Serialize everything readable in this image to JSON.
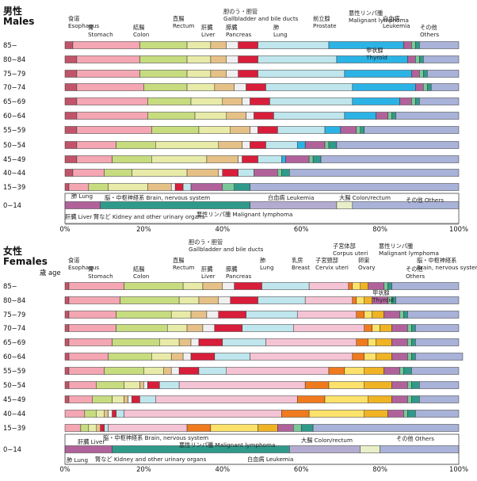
{
  "colors": {
    "esophagus": "#c1546a",
    "stomach": "#f4a6b2",
    "colon": "#c7dc7f",
    "rectum": "#e8eba8",
    "liver": "#e6c187",
    "gallbladder": "#f0f0f0",
    "pancreas": "#d81e3a",
    "lung": "#bfe6ec",
    "prostate": "#2bb3e6",
    "breast": "#f5c4d4",
    "corpus_uteri": "#f07a1e",
    "cervix_uteri": "#fce26a",
    "ovary": "#f0b323",
    "lymphoma": "#b1629b",
    "thyroid": "#7bc99a",
    "leukemia": "#2f9a8a",
    "others": "#a9b2d8",
    "brain": "#b3acd0",
    "kidney": "#e8efc7"
  },
  "chart_data": [
    {
      "type": "bar",
      "orientation": "horizontal",
      "stacked": true,
      "title": "男性 Males",
      "xlim": [
        0,
        100
      ],
      "x_ticks": [
        "0%",
        "20%",
        "40%",
        "60%",
        "80%",
        "100%"
      ],
      "categories": [
        "85−",
        "80−84",
        "75−79",
        "70−74",
        "65−69",
        "60−64",
        "55−59",
        "50−54",
        "45−49",
        "40−44",
        "15−39",
        "0−14"
      ],
      "series": [
        {
          "name": "食道 Esophagus",
          "key": "esophagus",
          "values": [
            2,
            3,
            3,
            3,
            3,
            3,
            3,
            3,
            3,
            2,
            1,
            0
          ]
        },
        {
          "name": "胃 Stomach",
          "key": "stomach",
          "values": [
            17,
            16,
            16,
            17,
            18,
            18,
            19,
            10,
            9,
            8,
            5,
            0
          ]
        },
        {
          "name": "結腸 Colon",
          "key": "colon",
          "values": [
            12,
            12,
            12,
            11,
            11,
            12,
            12,
            10,
            10,
            7,
            5,
            0
          ]
        },
        {
          "name": "直腸 Rectum",
          "key": "rectum",
          "values": [
            6,
            6,
            6,
            7,
            8,
            8,
            8,
            16,
            14,
            14,
            10,
            0
          ]
        },
        {
          "name": "肝臓 Liver",
          "key": "liver",
          "values": [
            4,
            4,
            4,
            5,
            5,
            5,
            5,
            6,
            8,
            8,
            6,
            0
          ]
        },
        {
          "name": "胆のう・胆管 Gallbladder and bile ducts",
          "key": "gallbladder",
          "values": [
            3,
            3,
            3,
            3,
            2,
            2,
            2,
            2,
            1,
            1,
            1,
            0
          ]
        },
        {
          "name": "膵臓 Pancreas",
          "key": "pancreas",
          "values": [
            5,
            5,
            5,
            5,
            5,
            5,
            5,
            4,
            4,
            4,
            2,
            0
          ]
        },
        {
          "name": "肺 Lung",
          "key": "lung",
          "values": [
            18,
            20,
            22,
            22,
            21,
            18,
            12,
            8,
            6,
            4,
            2,
            0
          ]
        },
        {
          "name": "前立腺 Prostate",
          "key": "prostate",
          "values": [
            19,
            18,
            17,
            16,
            12,
            8,
            4,
            2,
            1,
            0,
            0,
            0
          ]
        },
        {
          "name": "悪性リンパ腫 Malignant lymphoma",
          "key": "lymphoma",
          "values": [
            2,
            2,
            2,
            2,
            3,
            3,
            4,
            5,
            6,
            6,
            8,
            9
          ]
        },
        {
          "name": "甲状腺 Thyroid",
          "key": "thyroid",
          "values": [
            1,
            1,
            1,
            1,
            1,
            1,
            1,
            1,
            1,
            1,
            3,
            0
          ]
        },
        {
          "name": "白血病 Leukemia",
          "key": "leukemia",
          "values": [
            1,
            1,
            1,
            1,
            1,
            1,
            1,
            2,
            2,
            2,
            4,
            38
          ]
        },
        {
          "name": "脳・中枢神経系 Brain, nervous system",
          "key": "brain",
          "values": [
            0,
            0,
            0,
            0,
            0,
            0,
            0,
            0,
            0,
            0,
            0,
            22
          ]
        },
        {
          "name": "腎など Kidney and other urinary organs",
          "key": "kidney",
          "values": [
            0,
            0,
            0,
            0,
            0,
            0,
            0,
            0,
            0,
            0,
            0,
            4
          ]
        },
        {
          "name": "その他 Others",
          "key": "others",
          "values": [
            10,
            9,
            8,
            7,
            10,
            16,
            24,
            31,
            35,
            43,
            53,
            27
          ]
        }
      ],
      "child_row_labels": [
        "肺 Lung",
        "脳・中枢神経系 Brain, nervous system",
        "白血病 Leukemia",
        "大腸 Colon/rectum",
        "その他 Others",
        "肝臓 Liver",
        "腎など Kidney and other urinary organs",
        "悪性リンパ腫 Malignant lymphoma"
      ]
    },
    {
      "type": "bar",
      "orientation": "horizontal",
      "stacked": true,
      "title": "女性 Females",
      "age_label": "歳 age",
      "xlim": [
        0,
        100
      ],
      "x_ticks": [
        "0%",
        "20%",
        "40%",
        "60%",
        "80%",
        "100%"
      ],
      "categories": [
        "85−",
        "80−84",
        "75−79",
        "70−74",
        "65−69",
        "60−64",
        "55−59",
        "50−54",
        "45−49",
        "40−44",
        "15−39",
        "0−14"
      ],
      "series": [
        {
          "name": "食道 Esophagus",
          "key": "esophagus",
          "values": [
            1,
            1,
            1,
            1,
            1,
            1,
            1,
            1,
            1,
            0,
            0,
            0
          ]
        },
        {
          "name": "胃 Stomach",
          "key": "stomach",
          "values": [
            14,
            13,
            12,
            12,
            11,
            10,
            9,
            7,
            6,
            5,
            4,
            0
          ]
        },
        {
          "name": "結腸 Colon",
          "key": "colon",
          "values": [
            15,
            15,
            14,
            13,
            12,
            11,
            10,
            7,
            5,
            3,
            2,
            0
          ]
        },
        {
          "name": "直腸 Rectum",
          "key": "rectum",
          "values": [
            5,
            5,
            5,
            5,
            5,
            5,
            5,
            4,
            3,
            2,
            2,
            0
          ]
        },
        {
          "name": "肝臓 Liver",
          "key": "liver",
          "values": [
            5,
            5,
            4,
            4,
            3,
            3,
            2,
            1,
            1,
            1,
            1,
            0
          ]
        },
        {
          "name": "胆のう・胆管 Gallbladder and bile ducts",
          "key": "gallbladder",
          "values": [
            3,
            3,
            3,
            3,
            2,
            2,
            2,
            1,
            1,
            1,
            0,
            0
          ]
        },
        {
          "name": "膵臓 Pancreas",
          "key": "pancreas",
          "values": [
            7,
            7,
            7,
            7,
            6,
            6,
            5,
            3,
            2,
            1,
            1,
            0
          ]
        },
        {
          "name": "肺 Lung",
          "key": "lung",
          "values": [
            12,
            12,
            13,
            13,
            11,
            9,
            7,
            5,
            4,
            2,
            1,
            0
          ]
        },
        {
          "name": "乳房 Breast",
          "key": "breast",
          "values": [
            10,
            12,
            15,
            18,
            23,
            26,
            26,
            32,
            36,
            40,
            20,
            0
          ]
        },
        {
          "name": "子宮体部 Corpus uteri",
          "key": "corpus_uteri",
          "values": [
            1,
            1,
            2,
            2,
            3,
            3,
            4,
            6,
            7,
            7,
            6,
            0
          ]
        },
        {
          "name": "子宮頸部 Cervix uteri",
          "key": "cervix_uteri",
          "values": [
            2,
            2,
            2,
            2,
            2,
            3,
            5,
            9,
            11,
            14,
            12,
            0
          ]
        },
        {
          "name": "卵巣 Ovary",
          "key": "ovary",
          "values": [
            2,
            2,
            3,
            3,
            4,
            4,
            5,
            7,
            6,
            6,
            5,
            0
          ]
        },
        {
          "name": "悪性リンパ腫 Malignant lymphoma",
          "key": "lymphoma",
          "values": [
            4,
            4,
            4,
            4,
            4,
            4,
            4,
            4,
            4,
            4,
            4,
            12
          ]
        },
        {
          "name": "甲状腺 Thyroid",
          "key": "thyroid",
          "values": [
            1,
            1,
            1,
            1,
            1,
            1,
            1,
            1,
            1,
            1,
            2,
            0
          ]
        },
        {
          "name": "白血病 Leukemia",
          "key": "leukemia",
          "values": [
            1,
            1,
            1,
            1,
            1,
            1,
            2,
            2,
            2,
            2,
            3,
            45
          ]
        },
        {
          "name": "脳・中枢神経系 Brain, nervous system",
          "key": "brain",
          "values": [
            0,
            0,
            0,
            0,
            0,
            0,
            0,
            0,
            0,
            0,
            0,
            18
          ]
        },
        {
          "name": "腎など Kidney and other urinary organs",
          "key": "kidney",
          "values": [
            0,
            0,
            0,
            0,
            0,
            0,
            0,
            0,
            0,
            0,
            0,
            5
          ]
        },
        {
          "name": "その他 Others",
          "key": "others",
          "values": [
            17,
            16,
            13,
            11,
            11,
            12,
            12,
            10,
            10,
            11,
            37,
            20
          ]
        }
      ],
      "child_row_labels": [
        "肺 Lung",
        "肝臓 Liver",
        "脳・中枢神経系 Brain, nervous system",
        "腎など Kidney and other urinary organs",
        "悪性リンパ腫 Malignant lymphoma",
        "大腸 Colon/rectum",
        "白血病 Leukemia",
        "その他 Others"
      ]
    }
  ]
}
